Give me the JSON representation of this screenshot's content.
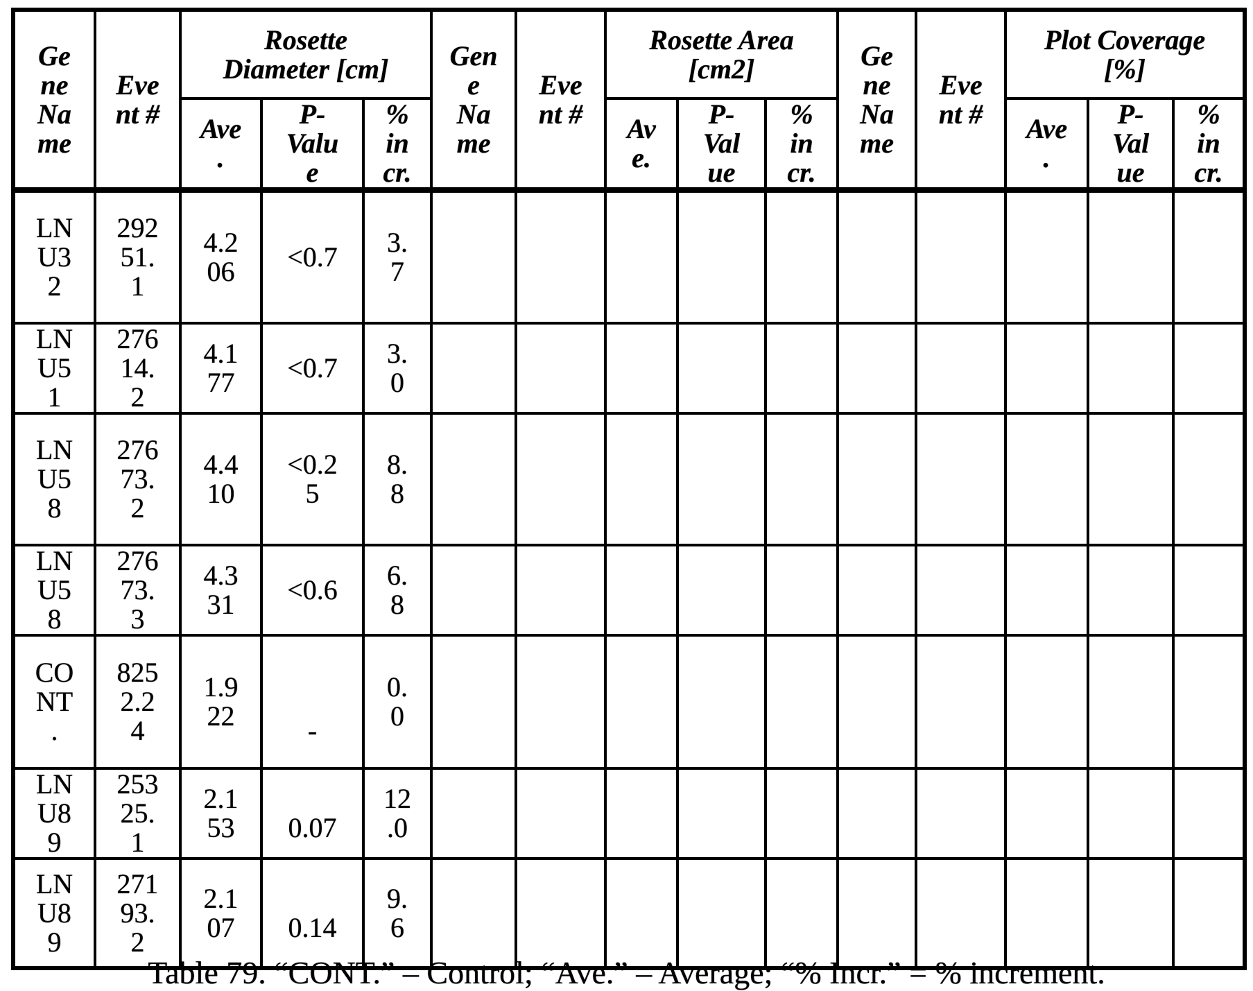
{
  "colors": {
    "ink": "#000000",
    "paper": "#ffffff"
  },
  "table": {
    "sections": [
      {
        "gene_header": "Ge\nne\nNa\nme",
        "event_header": "Eve\nnt #",
        "group_header": "Rosette\nDiameter [cm]",
        "sub_headers": [
          "Ave\n.",
          "P-\nValu\ne",
          "%\nin\ncr."
        ]
      },
      {
        "gene_header": "Gen\ne\nNa\nme",
        "event_header": "Eve\nnt #",
        "group_header": "Rosette Area\n[cm2]",
        "sub_headers": [
          "Av\ne.",
          "P-\nVal\nue",
          "%\nin\ncr."
        ]
      },
      {
        "gene_header": "Ge\nne\nNa\nme",
        "event_header": "Eve\nnt #",
        "group_header": "Plot Coverage\n[%]",
        "sub_headers": [
          "Ave\n.",
          "P-\nVal\nue",
          "%\nin\ncr."
        ]
      }
    ],
    "rows": [
      [
        "LN\nU3\n2",
        "292\n51.\n1",
        "4.2\n06",
        "<0.7",
        "3.\n7",
        "",
        "",
        "",
        "",
        "",
        "",
        "",
        "",
        "",
        ""
      ],
      [
        "LN\nU5\n1",
        "276\n14.\n2",
        "4.1\n77",
        "<0.7",
        "3.\n0",
        "",
        "",
        "",
        "",
        "",
        "",
        "",
        "",
        "",
        ""
      ],
      [
        "LN\nU5\n8",
        "276\n73.\n2",
        "4.4\n10",
        "<0.2\n5",
        "8.\n8",
        "",
        "",
        "",
        "",
        "",
        "",
        "",
        "",
        "",
        ""
      ],
      [
        "LN\nU5\n8",
        "276\n73.\n3",
        "4.3\n31",
        "<0.6",
        "6.\n8",
        "",
        "",
        "",
        "",
        "",
        "",
        "",
        "",
        "",
        ""
      ],
      [
        "CO\nNT\n.",
        "825\n2.2\n4",
        "1.9\n22",
        "\n\n-",
        "0.\n0",
        "",
        "",
        "",
        "",
        "",
        "",
        "",
        "",
        "",
        ""
      ],
      [
        "LN\nU8\n9",
        "253\n25.\n1",
        "2.1\n53",
        "\n0.07",
        "12\n.0",
        "",
        "",
        "",
        "",
        "",
        "",
        "",
        "",
        "",
        ""
      ],
      [
        "LN\nU8\n9",
        "271\n93.\n2",
        "2.1\n07",
        "\n0.14",
        "9.\n6",
        "",
        "",
        "",
        "",
        "",
        "",
        "",
        "",
        "",
        ""
      ]
    ],
    "caption": "Table 79. “CONT.” – Control; “Ave.” – Average; “% Incr.” = % increment."
  }
}
